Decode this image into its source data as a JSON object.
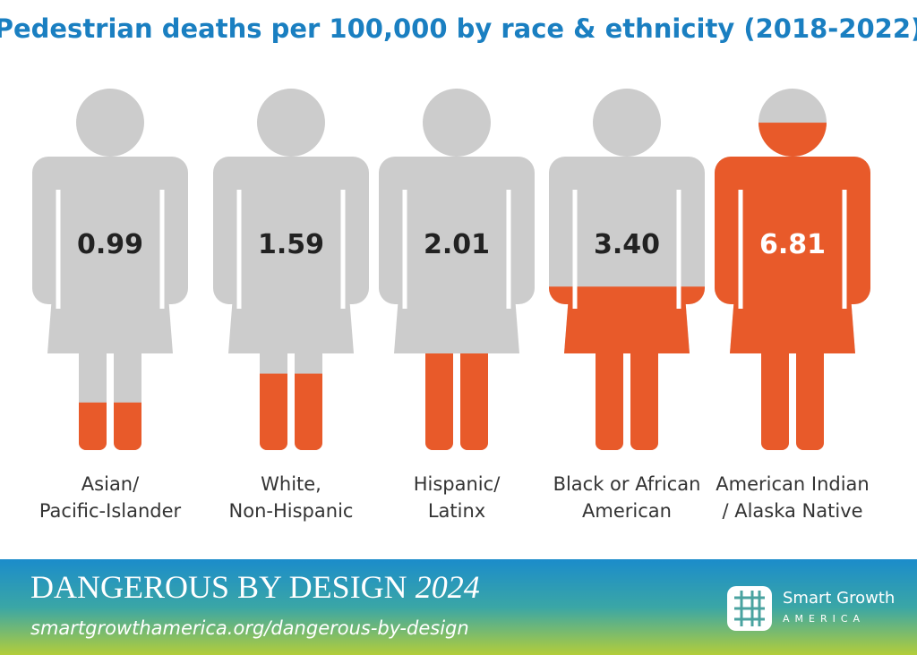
{
  "chart_data": {
    "type": "pictograph",
    "title": "Pedestrian deaths per 100,000 by race & ethnicity (2018-2022)",
    "categories": [
      "Asian/\nPacific-Islander",
      "White,\nNon-Hispanic",
      "Hispanic/\nLatinx",
      "Black or African\nAmerican",
      "American Indian\n/ Alaska Native"
    ],
    "values": [
      0.99,
      1.59,
      2.01,
      3.4,
      6.81
    ],
    "value_labels": [
      "0.99",
      "1.59",
      "2.01",
      "3.40",
      "6.81"
    ],
    "ylim": [
      0,
      7.5
    ],
    "color": "#e85a2a",
    "empty_color": "#cccccc"
  },
  "footer": {
    "title": "DANGEROUS BY DESIGN",
    "year": "2024",
    "url": "smartgrowthamerica.org/dangerous-by-design",
    "logo": {
      "name": "Smart Growth",
      "subname": "AMERICA"
    }
  }
}
